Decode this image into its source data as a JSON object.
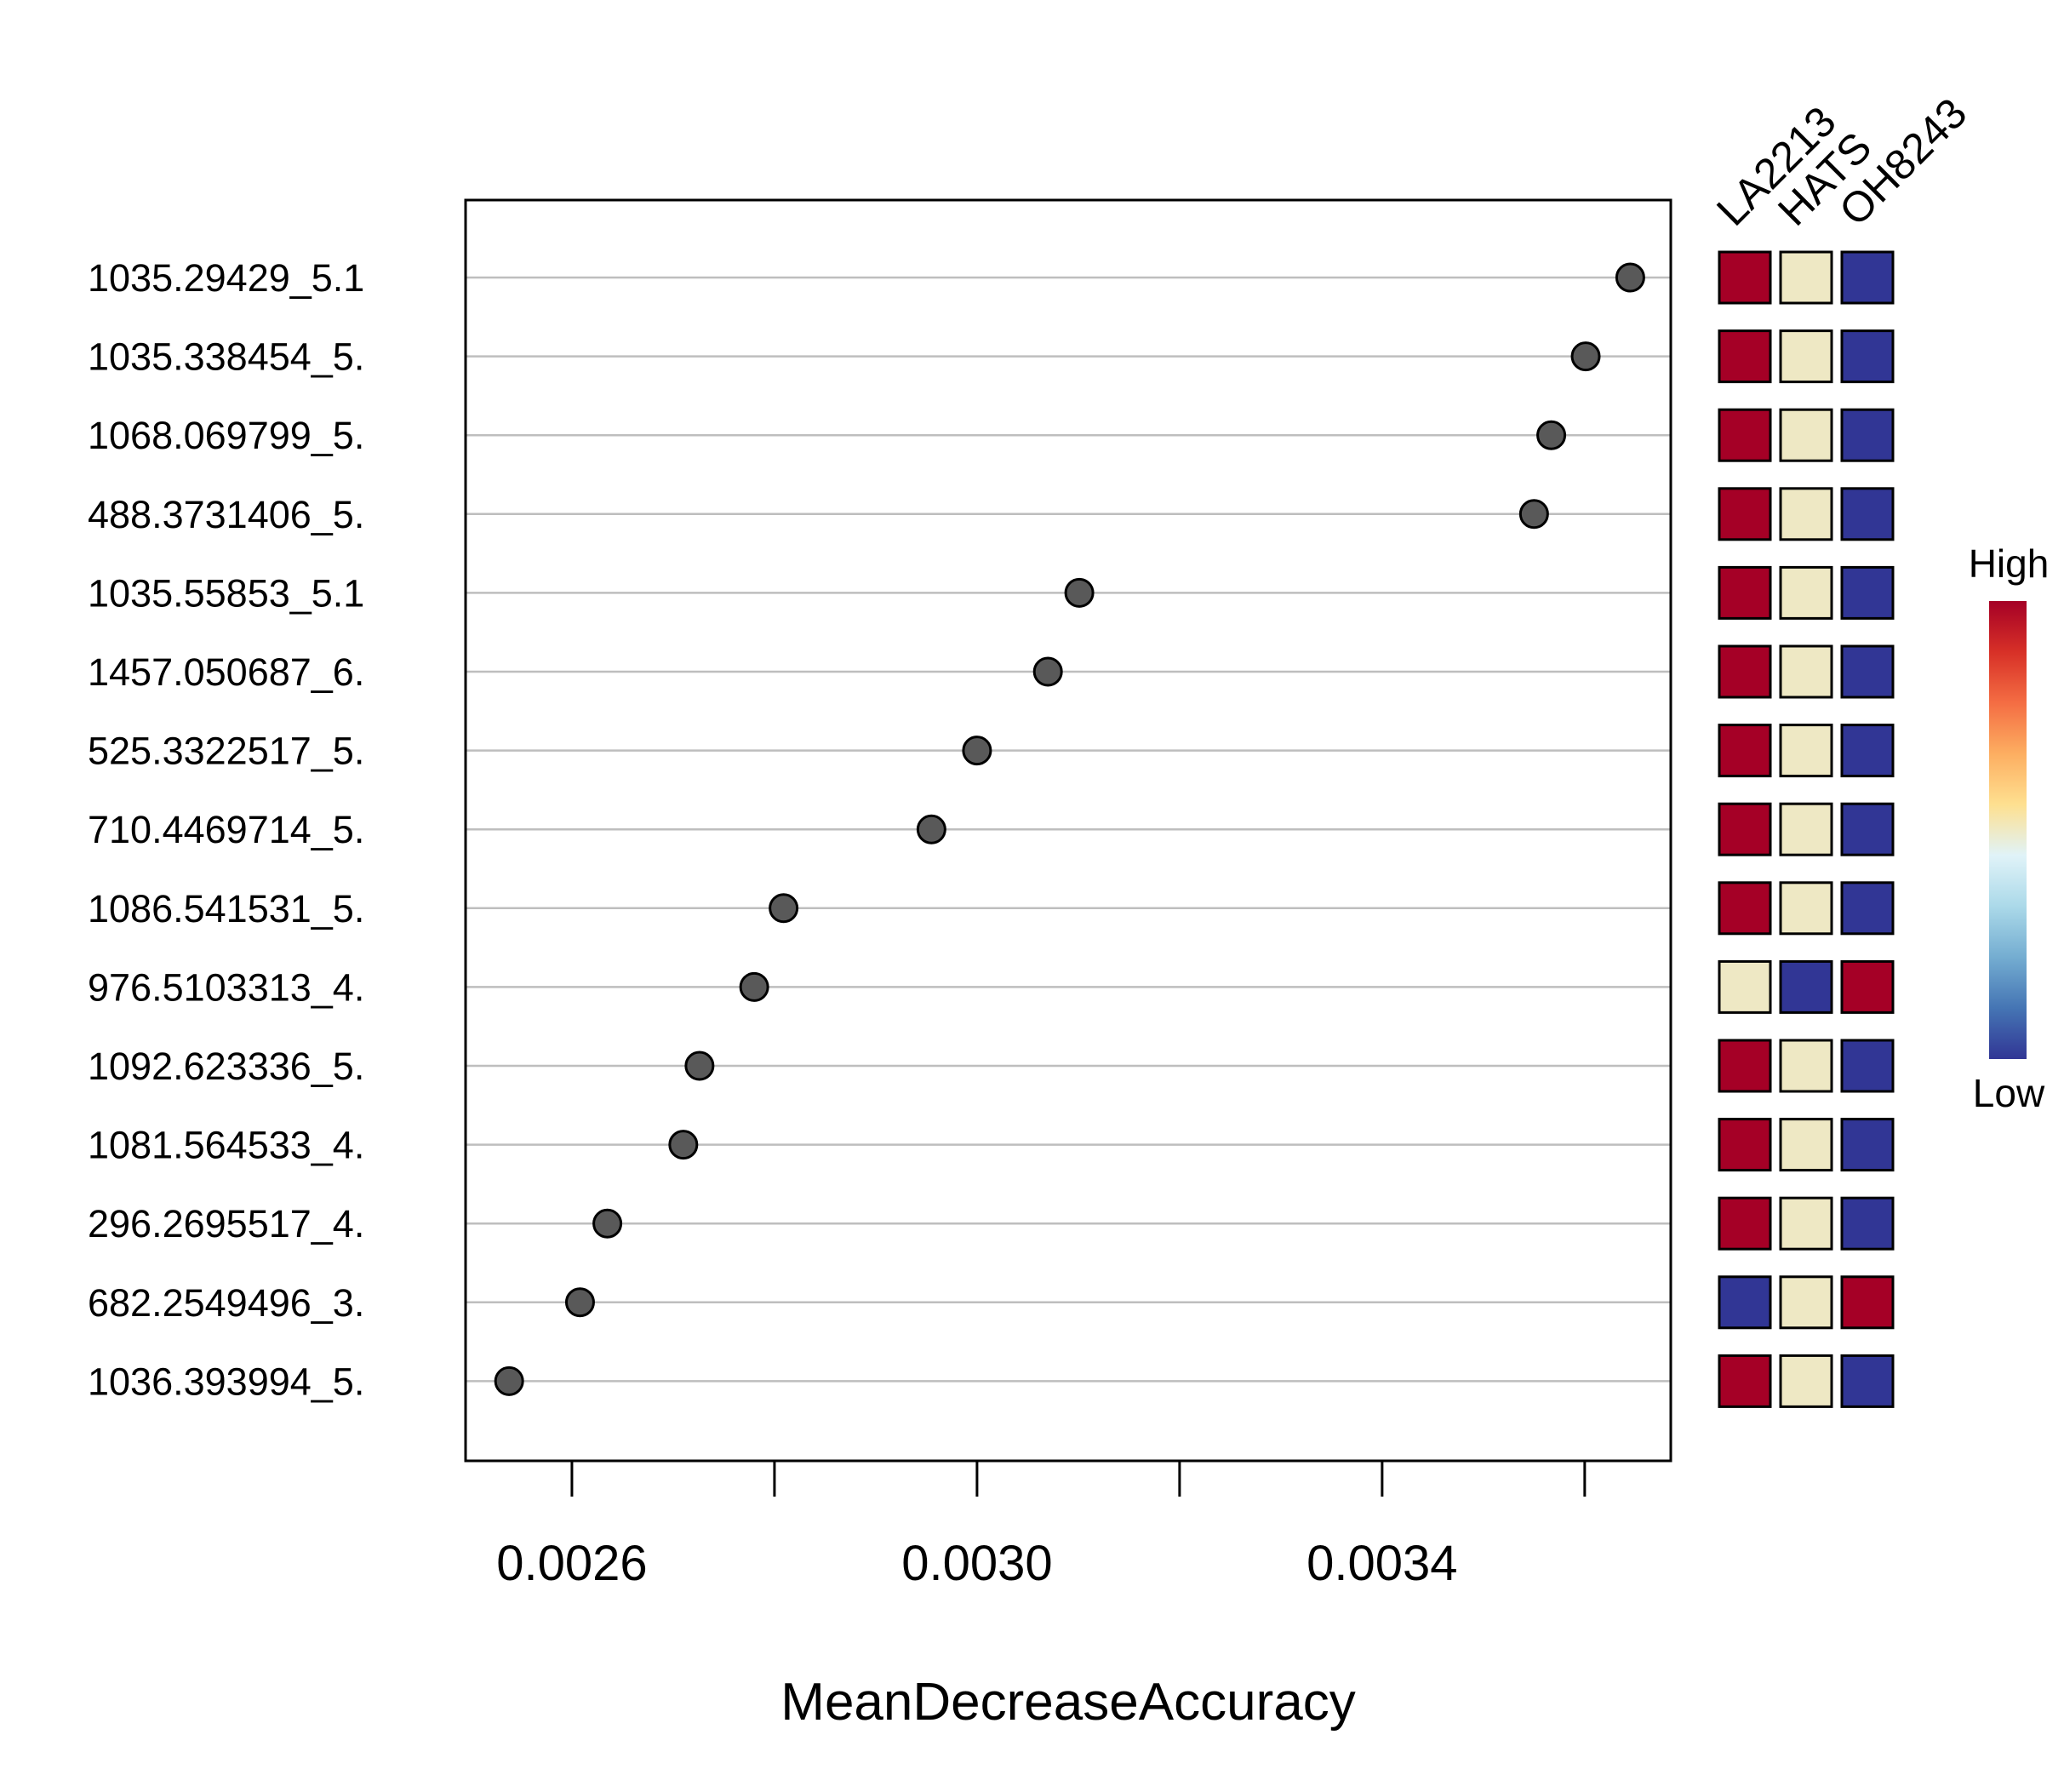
{
  "chart_data": {
    "type": "scatter",
    "subtype": "dot-plot",
    "title": "",
    "xlabel": "MeanDecreaseAccuracy",
    "ylabel": "",
    "xlim": [
      0.002495,
      0.003685
    ],
    "xticks": [
      0.0026,
      0.0028,
      0.003,
      0.0032,
      0.0034,
      0.0036
    ],
    "xtick_labels": [
      "0.0026",
      "",
      "0.0030",
      "",
      "0.0034",
      ""
    ],
    "grid": "horizontal",
    "features": [
      {
        "label": "1035.29429_5.1",
        "value": 0.003645,
        "levels": [
          "high",
          "mid",
          "low"
        ]
      },
      {
        "label": "1035.338454_5.",
        "value": 0.003601,
        "levels": [
          "high",
          "mid",
          "low"
        ]
      },
      {
        "label": "1068.069799_5.",
        "value": 0.003567,
        "levels": [
          "high",
          "mid",
          "low"
        ]
      },
      {
        "label": "488.3731406_5.",
        "value": 0.00355,
        "levels": [
          "high",
          "mid",
          "low"
        ]
      },
      {
        "label": "1035.55853_5.1",
        "value": 0.003101,
        "levels": [
          "high",
          "mid",
          "low"
        ]
      },
      {
        "label": "1457.050687_6.",
        "value": 0.00307,
        "levels": [
          "high",
          "mid",
          "low"
        ]
      },
      {
        "label": "525.3322517_5.",
        "value": 0.003,
        "levels": [
          "high",
          "mid",
          "low"
        ]
      },
      {
        "label": "710.4469714_5.",
        "value": 0.002955,
        "levels": [
          "high",
          "mid",
          "low"
        ]
      },
      {
        "label": "1086.541531_5.",
        "value": 0.002809,
        "levels": [
          "high",
          "mid",
          "low"
        ]
      },
      {
        "label": "976.5103313_4.",
        "value": 0.00278,
        "levels": [
          "mid",
          "low",
          "high"
        ]
      },
      {
        "label": "1092.623336_5.",
        "value": 0.002726,
        "levels": [
          "high",
          "mid",
          "low"
        ]
      },
      {
        "label": "1081.564533_4.",
        "value": 0.00271,
        "levels": [
          "high",
          "mid",
          "low"
        ]
      },
      {
        "label": "296.2695517_4.",
        "value": 0.002635,
        "levels": [
          "high",
          "mid",
          "low"
        ]
      },
      {
        "label": "682.2549496_3.",
        "value": 0.002608,
        "levels": [
          "low",
          "mid",
          "high"
        ]
      },
      {
        "label": "1036.393994_5.",
        "value": 0.002538,
        "levels": [
          "high",
          "mid",
          "low"
        ]
      }
    ],
    "groups": [
      "LA2213",
      "HATS",
      "OH8243"
    ],
    "heat_colors": {
      "high": "#a50026",
      "mid": "#eee8c4",
      "low": "#313695"
    },
    "marker_color": "#595959",
    "gridline_color": "#bebebe",
    "legend": {
      "high_label": "High",
      "low_label": "Low",
      "gradient": [
        "#a50026",
        "#d73027",
        "#f46d43",
        "#fdae61",
        "#fee090",
        "#e0f3f8",
        "#abd9e9",
        "#74add1",
        "#4575b4",
        "#313695"
      ]
    }
  }
}
